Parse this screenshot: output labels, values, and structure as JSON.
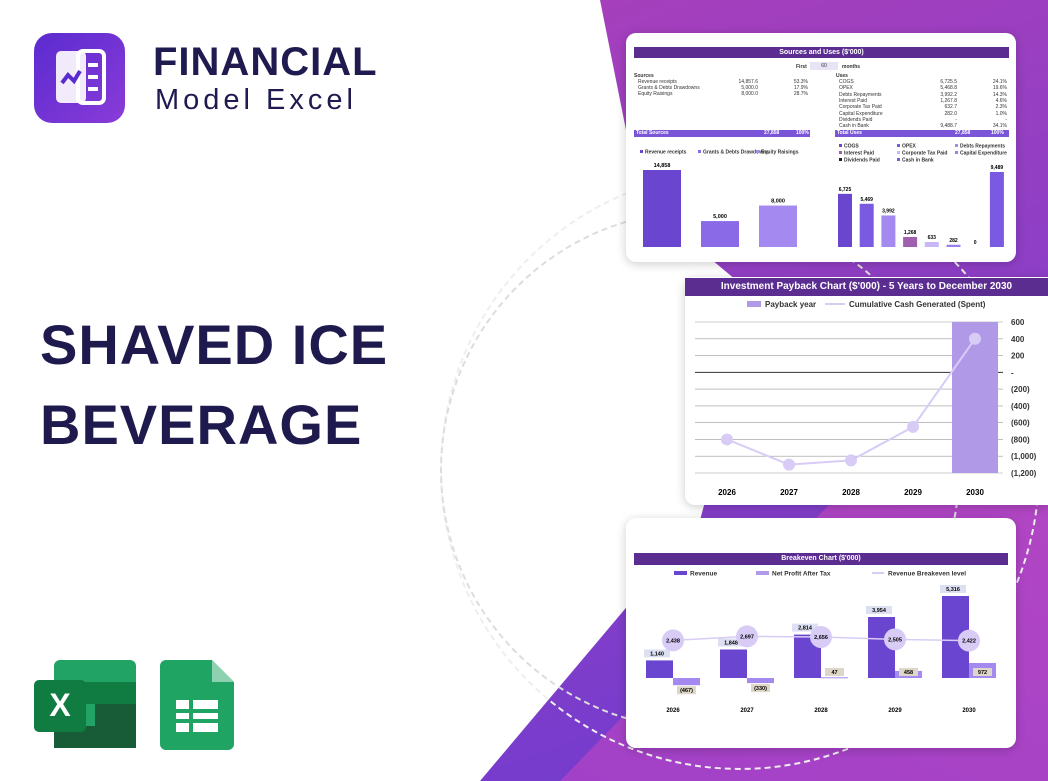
{
  "brand": {
    "line1": "FINANCIAL",
    "line2": "Model Excel"
  },
  "title": {
    "line1": "SHAVED ICE",
    "line2": "BEVERAGE"
  },
  "colors": {
    "purple_dark": "#5b2d90",
    "bar1": "#6a45d0",
    "bar2": "#8a6ae6",
    "bar3": "#a48af0",
    "navy": "#1e1a4d",
    "excel": "#1f7a44",
    "sheets": "#1fa463"
  },
  "icons": [
    "financial-model-logo-icon",
    "excel-icon",
    "google-sheets-icon"
  ],
  "sources_uses": {
    "title": "Sources and Uses ($'000)",
    "first_label": "First",
    "first_value": "60",
    "months_label": "months",
    "sources_heading": "Sources",
    "sources": [
      {
        "label": "Revenue receipts",
        "value": "14,857.6",
        "pct": "53.3%"
      },
      {
        "label": "Grants & Debts Drawdowns",
        "value": "5,000.0",
        "pct": "17.9%"
      },
      {
        "label": "Equity Raisings",
        "value": "8,000.0",
        "pct": "28.7%"
      }
    ],
    "total_sources": {
      "label": "Total Sources",
      "value": "27,858",
      "pct": "100%"
    },
    "uses_heading": "Uses",
    "uses": [
      {
        "label": "COGS",
        "value": "6,725.5",
        "pct": "24.1%"
      },
      {
        "label": "OPEX",
        "value": "5,468.8",
        "pct": "19.6%"
      },
      {
        "label": "Debts Repayments",
        "value": "3,992.2",
        "pct": "14.3%"
      },
      {
        "label": "Interest Paid",
        "value": "1,267.8",
        "pct": "4.6%"
      },
      {
        "label": "Corporate Tax Paid",
        "value": "632.7",
        "pct": "2.3%"
      },
      {
        "label": "Capital Expenditure",
        "value": "282.0",
        "pct": "1.0%"
      },
      {
        "label": "Dividends Paid",
        "value": "-",
        "pct": "-"
      },
      {
        "label": "Cash in Bank",
        "value": "9,488.7",
        "pct": "34.1%"
      }
    ],
    "total_uses": {
      "label": "Total Uses",
      "value": "27,858",
      "pct": "100%"
    }
  },
  "chart_data": [
    {
      "type": "bar",
      "categories": [
        "Revenue receipts",
        "Grants & Debts Drawdowns",
        "Equity Raisings"
      ],
      "values": [
        14858,
        5000,
        8000
      ],
      "labels": [
        "14,858",
        "5,000",
        "8,000"
      ],
      "legend": [
        "Revenue receipts",
        "Grants & Debts Drawdowns",
        "Equity Raisings"
      ],
      "legend_placement": "top",
      "colors": [
        "#6a45d0",
        "#8a6ae6",
        "#a48af0"
      ]
    },
    {
      "type": "bar",
      "categories": [
        "COGS",
        "OPEX",
        "Debts Repayments",
        "Interest Paid",
        "Corporate Tax Paid",
        "Capital Expenditure",
        "Dividends Paid",
        "Cash in Bank"
      ],
      "values": [
        6725,
        5469,
        3992,
        1268,
        633,
        282,
        0,
        9489
      ],
      "labels": [
        "6,725",
        "5,469",
        "3,992",
        "1,268",
        "633",
        "282",
        "0",
        "9,489"
      ],
      "legend": [
        "COGS",
        "OPEX",
        "Debts Repayments",
        "Interest Paid",
        "Corporate Tax Paid",
        "Capital Expenditure",
        "Dividends Paid",
        "Cash in Bank"
      ],
      "legend_placement": "top",
      "colors": [
        "#6a45d0",
        "#7a5ae0",
        "#a48af0",
        "#a060b0",
        "#c8b8f8",
        "#9a80ee",
        "#222222",
        "#7a5ae0"
      ]
    },
    {
      "type": "line",
      "title": "Investment Payback Chart ($'000) - 5 Years to December 2030",
      "categories": [
        "2026",
        "2027",
        "2028",
        "2029",
        "2030"
      ],
      "series": [
        {
          "name": "Payback year",
          "type": "bar",
          "values": [
            null,
            null,
            null,
            null,
            600
          ]
        },
        {
          "name": "Cumulative Cash Generated (Spent)",
          "type": "line",
          "values": [
            -800,
            -1100,
            -1050,
            -650,
            400
          ]
        }
      ],
      "ylim": [
        -1200,
        600
      ],
      "yticks": [
        "600",
        "400",
        "200",
        "-",
        "(200)",
        "(400)",
        "(600)",
        "(800)",
        "(1,000)",
        "(1,200)"
      ],
      "yaxis": "right",
      "grid": true,
      "legend_placement": "top"
    },
    {
      "type": "bar",
      "title": "Breakeven Chart ($'000)",
      "categories": [
        "2026",
        "2027",
        "2028",
        "2029",
        "2030"
      ],
      "series": [
        {
          "name": "Revenue",
          "values": [
            1140,
            1848,
            2814,
            3954,
            5316
          ],
          "labels": [
            "1,140",
            "1,848",
            "2,814",
            "3,954",
            "5,316"
          ]
        },
        {
          "name": "Net Profit After Tax",
          "values": [
            -467,
            -330,
            47,
            458,
            972
          ],
          "labels": [
            "(467)",
            "(330)",
            "47",
            "458",
            "972"
          ]
        },
        {
          "name": "Revenue Breakeven level",
          "type": "line",
          "values": [
            2438,
            2697,
            2656,
            2505,
            2422
          ],
          "labels": [
            "2,438",
            "2,697",
            "2,656",
            "2,505",
            "2,422"
          ]
        }
      ],
      "legend_placement": "top",
      "grid": false
    }
  ]
}
